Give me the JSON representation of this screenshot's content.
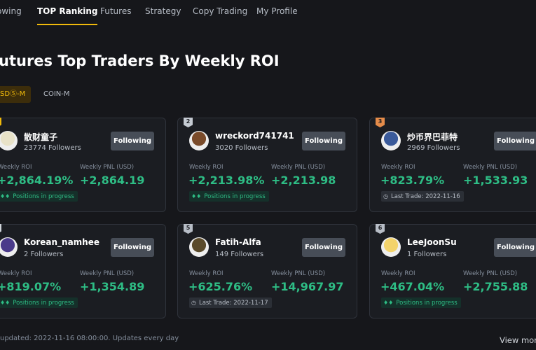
{
  "nav": {
    "items": [
      "owing",
      "TOP Ranking",
      "Futures",
      "Strategy",
      "Copy Trading",
      "My Profile"
    ],
    "active": 1
  },
  "title": "utures Top Traders By Weekly ROI",
  "tabs": {
    "items": [
      "SDⓈ-M",
      "COIN-M"
    ],
    "active": 0
  },
  "labels": {
    "roi": "Weekly ROI",
    "pnl": "Weekly PNL (USD)",
    "button": "Following"
  },
  "cards": [
    {
      "name": "散财童子",
      "followers": "23774 Followers",
      "roi": "+2,864.19%",
      "pnl": "+2,864.19",
      "status": "Positions in progress"
    },
    {
      "rank": "2",
      "name": "wreckord741741",
      "followers": "3020 Followers",
      "roi": "+2,213.98%",
      "pnl": "+2,213.98",
      "status": "Positions in progress"
    },
    {
      "rank": "3",
      "name": "炒币界巴菲特",
      "followers": "2969 Followers",
      "roi": "+823.79%",
      "pnl": "+1,533.93",
      "status": "Last Trade: 2022-11-16"
    },
    {
      "name": "Korean_namhee",
      "followers": "2 Followers",
      "roi": "+819.07%",
      "pnl": "+1,354.89",
      "status": "Positions in progress"
    },
    {
      "rank": "5",
      "name": "Fatih-Alfa",
      "followers": "149 Followers",
      "roi": "+625.76%",
      "pnl": "+14,967.97",
      "status": "Last Trade: 2022-11-17"
    },
    {
      "rank": "6",
      "name": "LeeJoonSu",
      "followers": "1 Followers",
      "roi": "+467.04%",
      "pnl": "+2,755.88",
      "status": "Positions in progress"
    }
  ],
  "footer": "updated: 2022-11-16 08:00:00. Updates every day",
  "view_more": "View more"
}
